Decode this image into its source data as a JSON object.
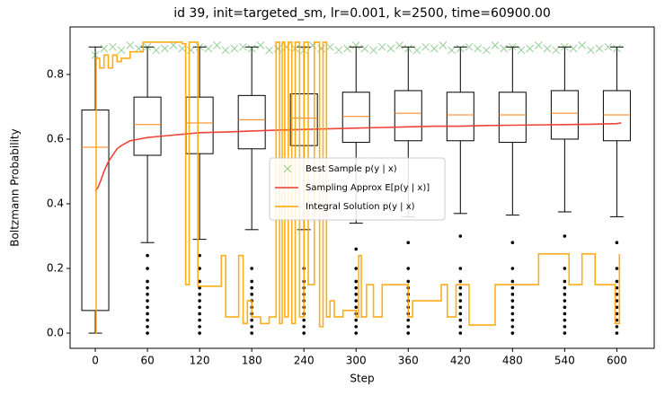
{
  "chart_data": {
    "type": "box",
    "title": "id 39, init=targeted_sm, lr=0.001, k=2500, time=60900.00",
    "x_label": "Step",
    "y_label": "Boltzmann Probability",
    "xlim": [
      -29,
      643
    ],
    "ylim": [
      -0.047,
      0.947
    ],
    "xticks": [
      0,
      60,
      120,
      180,
      240,
      300,
      360,
      420,
      480,
      540,
      600
    ],
    "yticks": [
      {
        "value": 0,
        "label": "0.0"
      },
      0.2,
      0.4,
      0.6,
      0.8
    ],
    "legend": "center",
    "box_color": "#000000",
    "median_color": "#ff7f0e",
    "boxes": [
      {
        "x": 0,
        "whislo": 0,
        "q1": 0.07,
        "med": 0.575,
        "q3": 0.69,
        "whishi": 0.885,
        "fliers": []
      },
      {
        "x": 60,
        "whislo": 0.28,
        "q1": 0.55,
        "med": 0.645,
        "q3": 0.73,
        "whishi": 0.885,
        "fliers": [
          0,
          0.02,
          0.04,
          0.06,
          0.08,
          0.1,
          0.12,
          0.14,
          0.16,
          0.2,
          0.24
        ]
      },
      {
        "x": 120,
        "whislo": 0.29,
        "q1": 0.555,
        "med": 0.65,
        "q3": 0.73,
        "whishi": 0.885,
        "fliers": [
          0,
          0.02,
          0.04,
          0.06,
          0.08,
          0.1,
          0.12,
          0.14,
          0.16,
          0.2,
          0.24
        ]
      },
      {
        "x": 180,
        "whislo": 0.32,
        "q1": 0.57,
        "med": 0.66,
        "q3": 0.735,
        "whishi": 0.885,
        "fliers": [
          0,
          0.02,
          0.04,
          0.06,
          0.08,
          0.1,
          0.12,
          0.14,
          0.16,
          0.2
        ]
      },
      {
        "x": 240,
        "whislo": 0.32,
        "q1": 0.58,
        "med": 0.665,
        "q3": 0.74,
        "whishi": 0.885,
        "fliers": [
          0,
          0.02,
          0.04,
          0.06,
          0.08,
          0.1,
          0.12,
          0.14,
          0.16,
          0.2
        ]
      },
      {
        "x": 300,
        "whislo": 0.34,
        "q1": 0.59,
        "med": 0.67,
        "q3": 0.745,
        "whishi": 0.885,
        "fliers": [
          0,
          0.02,
          0.04,
          0.06,
          0.08,
          0.1,
          0.12,
          0.14,
          0.16,
          0.2,
          0.26
        ]
      },
      {
        "x": 360,
        "whislo": 0.36,
        "q1": 0.595,
        "med": 0.68,
        "q3": 0.75,
        "whishi": 0.885,
        "fliers": [
          0,
          0.02,
          0.04,
          0.06,
          0.08,
          0.1,
          0.12,
          0.14,
          0.16,
          0.2,
          0.28
        ]
      },
      {
        "x": 420,
        "whislo": 0.37,
        "q1": 0.595,
        "med": 0.675,
        "q3": 0.745,
        "whishi": 0.885,
        "fliers": [
          0,
          0.02,
          0.04,
          0.06,
          0.08,
          0.1,
          0.12,
          0.14,
          0.16,
          0.2,
          0.3
        ]
      },
      {
        "x": 480,
        "whislo": 0.365,
        "q1": 0.59,
        "med": 0.675,
        "q3": 0.745,
        "whishi": 0.885,
        "fliers": [
          0,
          0.02,
          0.04,
          0.06,
          0.08,
          0.1,
          0.12,
          0.14,
          0.16,
          0.2,
          0.28
        ]
      },
      {
        "x": 540,
        "whislo": 0.375,
        "q1": 0.6,
        "med": 0.68,
        "q3": 0.75,
        "whishi": 0.885,
        "fliers": [
          0,
          0.02,
          0.04,
          0.06,
          0.08,
          0.1,
          0.12,
          0.14,
          0.16,
          0.2,
          0.3
        ]
      },
      {
        "x": 600,
        "whislo": 0.36,
        "q1": 0.595,
        "med": 0.675,
        "q3": 0.75,
        "whishi": 0.885,
        "fliers": [
          0,
          0.02,
          0.04,
          0.06,
          0.08,
          0.1,
          0.12,
          0.14,
          0.16,
          0.2,
          0.28
        ]
      }
    ],
    "series": [
      {
        "name": "Best Sample p(y | x)",
        "kind": "scatter",
        "color": "#2ca02c",
        "x": [
          0,
          10,
          20,
          30,
          40,
          50,
          60,
          70,
          80,
          90,
          100,
          110,
          120,
          130,
          140,
          150,
          160,
          170,
          180,
          190,
          200,
          210,
          220,
          230,
          240,
          250,
          260,
          270,
          280,
          290,
          300,
          310,
          320,
          330,
          340,
          350,
          360,
          370,
          380,
          390,
          400,
          410,
          420,
          430,
          440,
          450,
          460,
          470,
          480,
          490,
          500,
          510,
          520,
          530,
          540,
          550,
          560,
          570,
          580,
          590,
          600
        ],
        "values": [
          0.86,
          0.88,
          0.885,
          0.875,
          0.89,
          0.88,
          0.885,
          0.875,
          0.88,
          0.89,
          0.88,
          0.875,
          0.885,
          0.88,
          0.89,
          0.875,
          0.88,
          0.885,
          0.88,
          0.89,
          0.875,
          0.88,
          0.885,
          0.88,
          0.875,
          0.89,
          0.88,
          0.885,
          0.875,
          0.88,
          0.89,
          0.88,
          0.875,
          0.885,
          0.88,
          0.89,
          0.88,
          0.875,
          0.885,
          0.88,
          0.89,
          0.875,
          0.88,
          0.885,
          0.88,
          0.875,
          0.89,
          0.88,
          0.885,
          0.875,
          0.88,
          0.89,
          0.88,
          0.875,
          0.885,
          0.88,
          0.89,
          0.875,
          0.88,
          0.885,
          0.88
        ]
      },
      {
        "name": "Sampling Approx E[p(y | x)]",
        "kind": "line",
        "color": "#ee3a2e",
        "x": [
          0,
          3,
          6,
          10,
          15,
          20,
          25,
          30,
          40,
          50,
          60,
          80,
          100,
          120,
          150,
          180,
          210,
          240,
          270,
          300,
          330,
          360,
          390,
          420,
          450,
          480,
          510,
          540,
          570,
          600,
          605
        ],
        "values": [
          0.44,
          0.45,
          0.47,
          0.5,
          0.53,
          0.55,
          0.57,
          0.58,
          0.595,
          0.6,
          0.605,
          0.61,
          0.615,
          0.62,
          0.622,
          0.625,
          0.628,
          0.63,
          0.632,
          0.634,
          0.636,
          0.638,
          0.64,
          0.64,
          0.642,
          0.643,
          0.644,
          0.645,
          0.646,
          0.648,
          0.65
        ]
      },
      {
        "name": "Integral Solution p(y | x)",
        "kind": "step",
        "color": "#ffa500",
        "x": [
          0,
          1,
          5,
          10,
          15,
          20,
          25,
          30,
          40,
          55,
          100,
          104,
          108,
          118,
          145,
          150,
          165,
          170,
          175,
          180,
          190,
          200,
          208,
          212,
          215,
          218,
          222,
          226,
          230,
          235,
          240,
          245,
          252,
          258,
          262,
          266,
          270,
          275,
          285,
          300,
          303,
          306,
          312,
          320,
          330,
          360,
          365,
          398,
          405,
          415,
          430,
          440,
          460,
          470,
          510,
          540,
          545,
          560,
          575,
          595,
          598,
          603
        ],
        "values": [
          0,
          0.85,
          0.82,
          0.86,
          0.82,
          0.86,
          0.84,
          0.85,
          0.87,
          0.9,
          0.895,
          0.15,
          0.9,
          0.145,
          0.24,
          0.05,
          0.24,
          0.03,
          0.1,
          0.05,
          0.03,
          0.05,
          0.9,
          0.03,
          0.9,
          0.05,
          0.9,
          0.03,
          0.9,
          0.05,
          0.9,
          0.15,
          0.9,
          0.02,
          0.9,
          0.05,
          0.1,
          0.05,
          0.07,
          0.05,
          0.24,
          0.05,
          0.15,
          0.05,
          0.15,
          0.05,
          0.1,
          0.15,
          0.05,
          0.15,
          0.025,
          0.025,
          0.15,
          0.15,
          0.245,
          0.245,
          0.15,
          0.245,
          0.15,
          0.15,
          0.03,
          0.245
        ]
      }
    ]
  }
}
